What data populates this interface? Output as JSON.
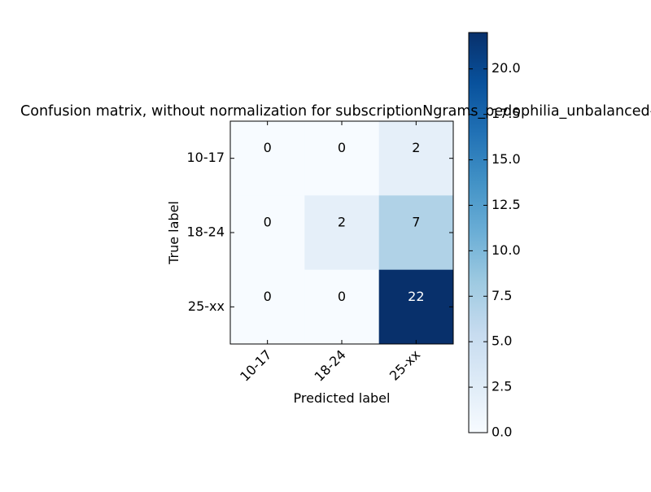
{
  "chart_data": {
    "type": "heatmap",
    "title": "Confusion matrix, without normalization for subscriptionNgrams_pedophilia_unbalanced-F",
    "xlabel": "Predicted label",
    "ylabel": "True label",
    "x_categories": [
      "10-17",
      "18-24",
      "25-xx"
    ],
    "y_categories": [
      "10-17",
      "18-24",
      "25-xx"
    ],
    "values": [
      [
        0,
        0,
        2
      ],
      [
        0,
        2,
        7
      ],
      [
        0,
        0,
        22
      ]
    ],
    "colorbar": {
      "min": 0,
      "max": 22,
      "ticks": [
        0,
        2.5,
        5,
        7.5,
        10,
        12.5,
        15,
        17.5,
        20
      ],
      "tick_labels": [
        "0.0",
        "2.5",
        "5.0",
        "7.5",
        "10.0",
        "12.5",
        "15.0",
        "17.5",
        "20.0"
      ]
    },
    "colormap": "Blues",
    "grid": false
  }
}
